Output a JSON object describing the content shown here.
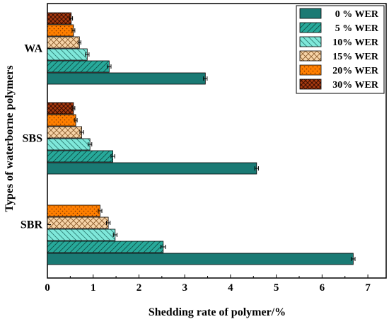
{
  "chart_data": {
    "type": "bar",
    "orientation": "horizontal",
    "xlabel": "Shedding rate of polymer/%",
    "ylabel": "Types of waterborne polymers",
    "xlim": [
      0,
      7.4
    ],
    "xticks": [
      "0",
      "1",
      "2",
      "3",
      "4",
      "5",
      "6",
      "7"
    ],
    "categories": [
      "WA",
      "SBS",
      "SBR"
    ],
    "legend_position": "top-right",
    "series": [
      {
        "name": "0 % WER",
        "values": [
          3.45,
          4.57,
          6.68
        ],
        "errors": [
          0.04,
          0.04,
          0.04
        ],
        "color": "#1a7a74",
        "pattern": "solid"
      },
      {
        "name": "5 % WER",
        "values": [
          1.35,
          1.43,
          2.53
        ],
        "errors": [
          0.04,
          0.04,
          0.05
        ],
        "color": "#27a99a",
        "pattern": "diag"
      },
      {
        "name": "10% WER",
        "values": [
          0.87,
          0.93,
          1.48
        ],
        "errors": [
          0.04,
          0.04,
          0.04
        ],
        "color": "#7fe8da",
        "pattern": "backdiag"
      },
      {
        "name": "15% WER",
        "values": [
          0.7,
          0.75,
          1.33
        ],
        "errors": [
          0.03,
          0.04,
          0.04
        ],
        "color": "#f6d3a7",
        "pattern": "cross"
      },
      {
        "name": "20% WER",
        "values": [
          0.57,
          0.62,
          1.15
        ],
        "errors": [
          0.03,
          0.03,
          0.04
        ],
        "color": "#ff7f00",
        "pattern": "dots"
      },
      {
        "name": "30% WER",
        "values": [
          0.52,
          0.57,
          null
        ],
        "errors": [
          0.03,
          0.03,
          null
        ],
        "color": "#a83a10",
        "pattern": "checker"
      }
    ]
  }
}
